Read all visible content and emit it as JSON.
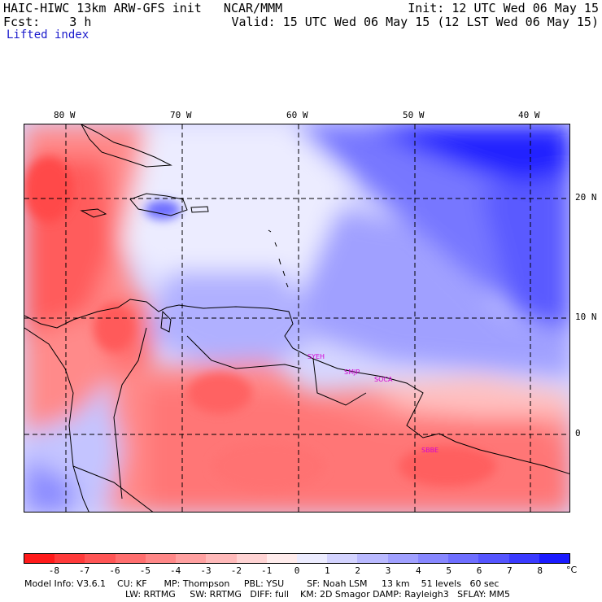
{
  "header": {
    "line1_left": "HAIC-HIWC 13km ARW-GFS init   NCAR/MMM",
    "line1_right": "Init: 12 UTC Wed 06 May 15",
    "line2_left": "Fcst:    3 h",
    "line2_right": "Valid: 15 UTC Wed 06 May 15 (12 LST Wed 06 May 15)",
    "field_name": "Lifted index"
  },
  "map": {
    "longitude_labels": [
      "80 W",
      "70 W",
      "60 W",
      "50 W",
      "40 W"
    ],
    "latitude_labels": [
      "20 N",
      "10 N",
      "0"
    ],
    "stations": [
      "SYEH",
      "SMJP",
      "SOCA",
      "SBBE"
    ]
  },
  "colorbar": {
    "labels": [
      "-8",
      "-7",
      "-6",
      "-5",
      "-4",
      "-3",
      "-2",
      "-1",
      "0",
      "1",
      "2",
      "3",
      "4",
      "5",
      "6",
      "7",
      "8"
    ],
    "unit": "°C",
    "colors": [
      "#ff1a1a",
      "#ff3a3a",
      "#ff5555",
      "#ff6e6e",
      "#ff8787",
      "#ffa0a0",
      "#ffb9b9",
      "#ffd3d3",
      "#ffecec",
      "#ececff",
      "#d3d3ff",
      "#b9b9ff",
      "#a0a0ff",
      "#8787ff",
      "#6e6eff",
      "#5555ff",
      "#3a3aff",
      "#1a1aff"
    ]
  },
  "model_info": {
    "line1": "Model Info: V3.6.1    CU: KF      MP: Thompson     PBL: YSU        SF: Noah LSM     13 km    51 levels   60 sec",
    "line2": "LW: RRTMG     SW: RRTMG   DIFF: full    KM: 2D Smagor DAMP: Rayleigh3   SFLAY: MM5"
  }
}
